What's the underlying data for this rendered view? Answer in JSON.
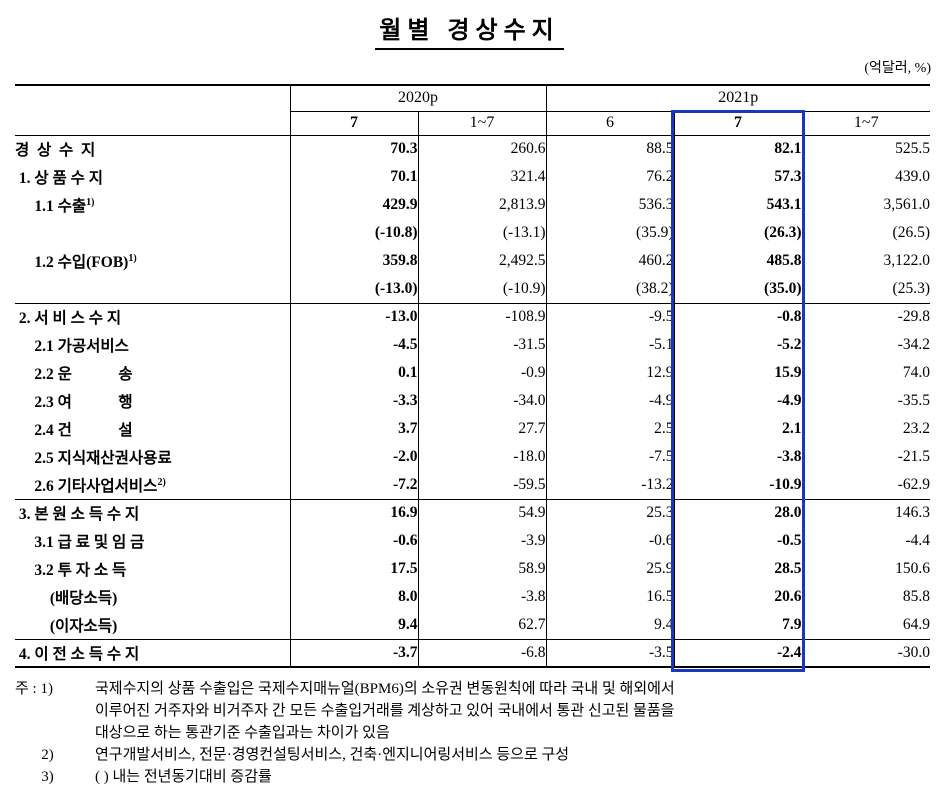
{
  "title": "월별 경상수지",
  "unit_note": "(억달러, %)",
  "table": {
    "highlight_color": "#1a38bd",
    "highlighted_column": "2021p-7",
    "col_groups": [
      {
        "label": "2020p",
        "span": 2
      },
      {
        "label": "2021p",
        "span": 3
      }
    ],
    "sub_headers": [
      "7",
      "1~7",
      "6",
      "7",
      "1~7"
    ],
    "sections": [
      {
        "rows": [
          {
            "label": "경  상  수  지",
            "head": true,
            "values": [
              "70.3",
              "260.6",
              "88.5",
              "82.1",
              "525.5"
            ]
          },
          {
            "label": " 1. 상 품 수 지",
            "head": true,
            "values": [
              "70.1",
              "321.4",
              "76.2",
              "57.3",
              "439.0"
            ]
          },
          {
            "label": "     1.1 수출",
            "sup": "1)",
            "values": [
              "429.9",
              "2,813.9",
              "536.3",
              "543.1",
              "3,561.0"
            ]
          },
          {
            "label": "",
            "values": [
              "(-10.8)",
              "(-13.1)",
              "(35.9)",
              "(26.3)",
              "(26.5)"
            ]
          },
          {
            "label": "     1.2 수입(FOB)",
            "sup": "1)",
            "values": [
              "359.8",
              "2,492.5",
              "460.2",
              "485.8",
              "3,122.0"
            ]
          },
          {
            "label": "",
            "values": [
              "(-13.0)",
              "(-10.9)",
              "(38.2)",
              "(35.0)",
              "(25.3)"
            ]
          }
        ]
      },
      {
        "rows": [
          {
            "label": " 2. 서 비 스 수 지",
            "head": true,
            "values": [
              "-13.0",
              "-108.9",
              "-9.5",
              "-0.8",
              "-29.8"
            ]
          },
          {
            "label": "     2.1 가공서비스",
            "values": [
              "-4.5",
              "-31.5",
              "-5.1",
              "-5.2",
              "-34.2"
            ]
          },
          {
            "label": "     2.2 운            송",
            "values": [
              "0.1",
              "-0.9",
              "12.9",
              "15.9",
              "74.0"
            ]
          },
          {
            "label": "     2.3 여            행",
            "values": [
              "-3.3",
              "-34.0",
              "-4.9",
              "-4.9",
              "-35.5"
            ]
          },
          {
            "label": "     2.4 건            설",
            "values": [
              "3.7",
              "27.7",
              "2.5",
              "2.1",
              "23.2"
            ]
          },
          {
            "label": "     2.5 지식재산권사용료",
            "values": [
              "-2.0",
              "-18.0",
              "-7.5",
              "-3.8",
              "-21.5"
            ]
          },
          {
            "label": "     2.6 기타사업서비스",
            "sup": "2)",
            "values": [
              "-7.2",
              "-59.5",
              "-13.2",
              "-10.9",
              "-62.9"
            ]
          }
        ]
      },
      {
        "rows": [
          {
            "label": " 3. 본 원 소 득 수 지",
            "head": true,
            "values": [
              "16.9",
              "54.9",
              "25.3",
              "28.0",
              "146.3"
            ]
          },
          {
            "label": "     3.1 급 료 및 임 금",
            "values": [
              "-0.6",
              "-3.9",
              "-0.6",
              "-0.5",
              "-4.4"
            ]
          },
          {
            "label": "     3.2 투 자 소 득",
            "values": [
              "17.5",
              "58.9",
              "25.9",
              "28.5",
              "150.6"
            ]
          },
          {
            "label": "         (배당소득)",
            "values": [
              "8.0",
              "-3.8",
              "16.5",
              "20.6",
              "85.8"
            ]
          },
          {
            "label": "         (이자소득)",
            "values": [
              "9.4",
              "62.7",
              "9.4",
              "7.9",
              "64.9"
            ]
          }
        ]
      },
      {
        "rows": [
          {
            "label": " 4. 이 전 소 득 수 지",
            "head": true,
            "values": [
              "-3.7",
              "-6.8",
              "-3.5",
              "-2.4",
              "-30.0"
            ]
          }
        ]
      }
    ]
  },
  "footnotes": [
    {
      "marker": "주 : 1)",
      "lines": [
        "국제수지의 상품 수출입은 국제수지매뉴얼(BPM6)의 소유권 변동원칙에 따라 국내 및 해외에서",
        "이루어진 거주자와 비거주자 간 모든 수출입거래를 계상하고 있어 국내에서 통관 신고된 물품을",
        "대상으로 하는 통관기준 수출입과는 차이가 있음"
      ]
    },
    {
      "marker": "       2)",
      "lines": [
        "연구개발서비스, 전문·경영컨설팅서비스, 건축·엔지니어링서비스 등으로 구성"
      ]
    },
    {
      "marker": "       3)",
      "lines": [
        "( ) 내는 전년동기대비 증감률"
      ]
    }
  ]
}
